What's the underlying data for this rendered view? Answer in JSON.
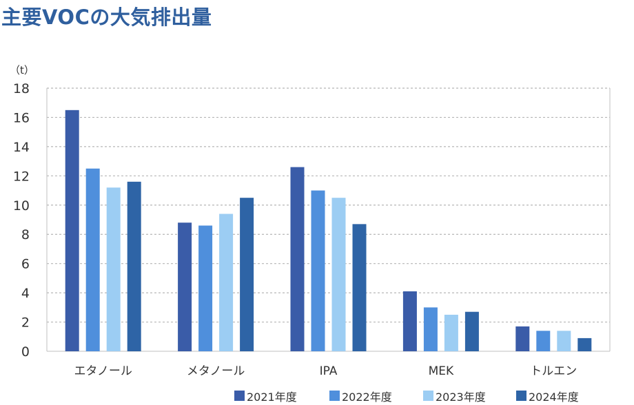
{
  "chart_data": {
    "type": "bar",
    "title": "主要VOCの大気排出量",
    "unit_label": "（t）",
    "categories": [
      "エタノール",
      "メタノール",
      "IPA",
      "MEK",
      "トルエン"
    ],
    "series": [
      {
        "name": "2021年度",
        "color": "#3a5ca8",
        "values": [
          16.5,
          8.8,
          12.6,
          4.1,
          1.7
        ]
      },
      {
        "name": "2022年度",
        "color": "#4f8fdc",
        "values": [
          12.5,
          8.6,
          11.0,
          3.0,
          1.4
        ]
      },
      {
        "name": "2023年度",
        "color": "#9ccdf3",
        "values": [
          11.2,
          9.4,
          10.5,
          2.5,
          1.4
        ]
      },
      {
        "name": "2024年度",
        "color": "#2e64a6",
        "values": [
          11.6,
          10.5,
          8.7,
          2.7,
          0.9
        ]
      }
    ],
    "yticks": [
      0,
      2,
      4,
      6,
      8,
      10,
      12,
      14,
      16,
      18
    ],
    "ylim": [
      0,
      18
    ],
    "grid": true,
    "legend_position": "bottom-right"
  }
}
